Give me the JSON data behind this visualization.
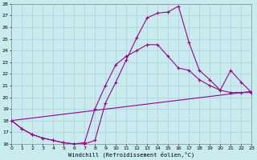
{
  "xlabel": "Windchill (Refroidissement éolien,°C)",
  "background_color": "#c8ecee",
  "grid_color": "#b0d4d8",
  "line_color": "#990099",
  "xlim": [
    0,
    23
  ],
  "ylim": [
    16,
    28
  ],
  "xticks": [
    0,
    1,
    2,
    3,
    4,
    5,
    6,
    7,
    8,
    9,
    10,
    11,
    12,
    13,
    14,
    15,
    16,
    17,
    18,
    19,
    20,
    21,
    22,
    23
  ],
  "yticks": [
    16,
    17,
    18,
    19,
    20,
    21,
    22,
    23,
    24,
    25,
    26,
    27,
    28
  ],
  "series1_x": [
    0,
    1,
    2,
    3,
    4,
    5,
    6,
    7,
    8,
    9,
    10,
    11,
    12,
    13,
    14,
    15,
    16,
    17,
    18,
    19,
    20,
    21,
    22,
    23
  ],
  "series1_y": [
    18.0,
    17.3,
    16.8,
    16.5,
    16.3,
    16.1,
    16.0,
    16.0,
    16.3,
    19.5,
    21.3,
    23.2,
    25.1,
    26.8,
    27.2,
    27.3,
    27.8,
    24.7,
    22.3,
    21.5,
    20.6,
    20.4,
    20.4,
    20.4
  ],
  "series2_x": [
    0,
    1,
    2,
    3,
    4,
    5,
    6,
    7,
    8,
    9,
    10,
    11,
    12,
    13,
    14,
    15,
    16,
    17,
    18,
    19,
    20,
    21,
    22,
    23
  ],
  "series2_y": [
    18.0,
    17.3,
    16.8,
    16.5,
    16.3,
    16.1,
    16.0,
    16.1,
    19.0,
    21.0,
    22.8,
    23.5,
    24.0,
    24.5,
    24.5,
    23.5,
    22.5,
    22.3,
    21.5,
    21.0,
    20.6,
    22.3,
    21.3,
    20.4
  ],
  "series3_x": [
    0,
    23
  ],
  "series3_y": [
    18.0,
    20.5
  ]
}
